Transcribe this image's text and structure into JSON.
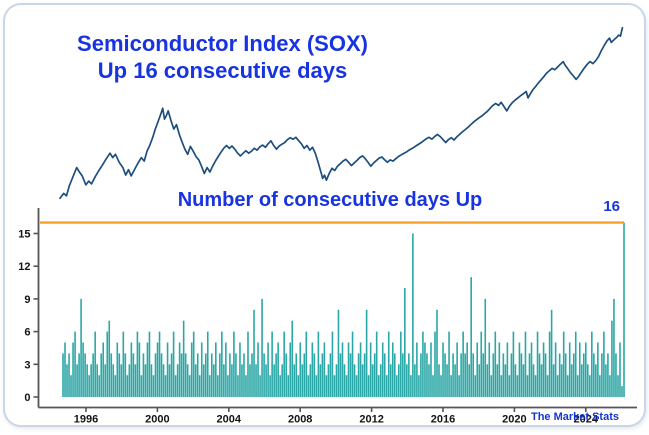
{
  "card": {
    "title_line1": "Semiconductor Index (SOX)",
    "title_line2": "Up 16 consecutive days",
    "watermark": "The Market Stats"
  },
  "colors": {
    "title_blue": "#1833E0",
    "line_navy": "#1E4E7E",
    "bar_teal": "#2AA7A6",
    "highlight_orange": "#F5A02B",
    "axis_gray": "#555555",
    "tick_text": "#141414"
  },
  "chart_data": [
    {
      "id": "sox-price",
      "type": "line",
      "title": "Semiconductor Index (SOX)",
      "subtitle": "Up 16 consecutive days",
      "x_unit": "year",
      "x_range": [
        1994.8,
        2025.2
      ],
      "yscale": "log",
      "grid": false,
      "legend": "none",
      "points": [
        [
          1994.8,
          195
        ],
        [
          1995.0,
          215
        ],
        [
          1995.15,
          205
        ],
        [
          1995.3,
          250
        ],
        [
          1995.5,
          300
        ],
        [
          1995.7,
          360
        ],
        [
          1995.85,
          330
        ],
        [
          1996.0,
          305
        ],
        [
          1996.2,
          255
        ],
        [
          1996.35,
          275
        ],
        [
          1996.5,
          260
        ],
        [
          1996.7,
          300
        ],
        [
          1996.9,
          340
        ],
        [
          1997.1,
          380
        ],
        [
          1997.3,
          430
        ],
        [
          1997.5,
          480
        ],
        [
          1997.65,
          440
        ],
        [
          1997.8,
          470
        ],
        [
          1998.0,
          400
        ],
        [
          1998.2,
          360
        ],
        [
          1998.35,
          310
        ],
        [
          1998.5,
          345
        ],
        [
          1998.65,
          305
        ],
        [
          1998.8,
          340
        ],
        [
          1999.0,
          390
        ],
        [
          1999.2,
          440
        ],
        [
          1999.35,
          410
        ],
        [
          1999.5,
          500
        ],
        [
          1999.65,
          560
        ],
        [
          1999.8,
          650
        ],
        [
          1999.95,
          780
        ],
        [
          2000.1,
          900
        ],
        [
          2000.25,
          1050
        ],
        [
          2000.35,
          1180
        ],
        [
          2000.45,
          950
        ],
        [
          2000.55,
          1020
        ],
        [
          2000.65,
          1120
        ],
        [
          2000.8,
          920
        ],
        [
          2000.95,
          780
        ],
        [
          2001.1,
          850
        ],
        [
          2001.25,
          700
        ],
        [
          2001.4,
          600
        ],
        [
          2001.55,
          520
        ],
        [
          2001.7,
          470
        ],
        [
          2001.85,
          550
        ],
        [
          2002.0,
          500
        ],
        [
          2002.15,
          450
        ],
        [
          2002.3,
          420
        ],
        [
          2002.45,
          370
        ],
        [
          2002.6,
          320
        ],
        [
          2002.75,
          360
        ],
        [
          2002.9,
          330
        ],
        [
          2003.05,
          370
        ],
        [
          2003.2,
          410
        ],
        [
          2003.35,
          450
        ],
        [
          2003.5,
          490
        ],
        [
          2003.65,
          530
        ],
        [
          2003.8,
          560
        ],
        [
          2003.95,
          530
        ],
        [
          2004.1,
          555
        ],
        [
          2004.25,
          520
        ],
        [
          2004.4,
          480
        ],
        [
          2004.55,
          455
        ],
        [
          2004.7,
          480
        ],
        [
          2004.85,
          505
        ],
        [
          2005.0,
          480
        ],
        [
          2005.15,
          500
        ],
        [
          2005.3,
          530
        ],
        [
          2005.45,
          510
        ],
        [
          2005.6,
          545
        ],
        [
          2005.75,
          565
        ],
        [
          2005.9,
          540
        ],
        [
          2006.05,
          580
        ],
        [
          2006.2,
          615
        ],
        [
          2006.35,
          560
        ],
        [
          2006.5,
          520
        ],
        [
          2006.65,
          555
        ],
        [
          2006.8,
          575
        ],
        [
          2006.95,
          595
        ],
        [
          2007.1,
          630
        ],
        [
          2007.25,
          655
        ],
        [
          2007.4,
          635
        ],
        [
          2007.55,
          660
        ],
        [
          2007.7,
          615
        ],
        [
          2007.85,
          580
        ],
        [
          2008.0,
          530
        ],
        [
          2008.15,
          560
        ],
        [
          2008.3,
          510
        ],
        [
          2008.45,
          540
        ],
        [
          2008.6,
          480
        ],
        [
          2008.75,
          400
        ],
        [
          2008.9,
          330
        ],
        [
          2009.0,
          290
        ],
        [
          2009.1,
          310
        ],
        [
          2009.2,
          280
        ],
        [
          2009.35,
          320
        ],
        [
          2009.5,
          355
        ],
        [
          2009.65,
          340
        ],
        [
          2009.8,
          370
        ],
        [
          2009.95,
          390
        ],
        [
          2010.1,
          410
        ],
        [
          2010.25,
          425
        ],
        [
          2010.4,
          400
        ],
        [
          2010.55,
          375
        ],
        [
          2010.7,
          395
        ],
        [
          2010.85,
          415
        ],
        [
          2011.0,
          440
        ],
        [
          2011.15,
          455
        ],
        [
          2011.3,
          430
        ],
        [
          2011.45,
          400
        ],
        [
          2011.6,
          370
        ],
        [
          2011.75,
          395
        ],
        [
          2011.9,
          415
        ],
        [
          2012.05,
          435
        ],
        [
          2012.2,
          445
        ],
        [
          2012.35,
          420
        ],
        [
          2012.5,
          400
        ],
        [
          2012.65,
          420
        ],
        [
          2012.8,
          410
        ],
        [
          2012.95,
          430
        ],
        [
          2013.1,
          450
        ],
        [
          2013.25,
          465
        ],
        [
          2013.4,
          480
        ],
        [
          2013.55,
          495
        ],
        [
          2013.7,
          515
        ],
        [
          2013.85,
          530
        ],
        [
          2014.0,
          550
        ],
        [
          2014.15,
          570
        ],
        [
          2014.3,
          590
        ],
        [
          2014.45,
          615
        ],
        [
          2014.6,
          640
        ],
        [
          2014.75,
          660
        ],
        [
          2014.9,
          635
        ],
        [
          2015.05,
          670
        ],
        [
          2015.2,
          700
        ],
        [
          2015.35,
          670
        ],
        [
          2015.5,
          630
        ],
        [
          2015.65,
          595
        ],
        [
          2015.8,
          630
        ],
        [
          2015.95,
          655
        ],
        [
          2016.1,
          625
        ],
        [
          2016.25,
          665
        ],
        [
          2016.4,
          700
        ],
        [
          2016.55,
          735
        ],
        [
          2016.7,
          770
        ],
        [
          2016.85,
          805
        ],
        [
          2017.0,
          850
        ],
        [
          2017.15,
          895
        ],
        [
          2017.3,
          935
        ],
        [
          2017.45,
          975
        ],
        [
          2017.6,
          1010
        ],
        [
          2017.75,
          1060
        ],
        [
          2017.9,
          1110
        ],
        [
          2018.05,
          1180
        ],
        [
          2018.2,
          1250
        ],
        [
          2018.35,
          1300
        ],
        [
          2018.5,
          1250
        ],
        [
          2018.65,
          1330
        ],
        [
          2018.8,
          1220
        ],
        [
          2018.95,
          1120
        ],
        [
          2019.1,
          1230
        ],
        [
          2019.25,
          1320
        ],
        [
          2019.4,
          1390
        ],
        [
          2019.55,
          1450
        ],
        [
          2019.7,
          1520
        ],
        [
          2019.85,
          1580
        ],
        [
          2020.0,
          1650
        ],
        [
          2020.1,
          1450
        ],
        [
          2020.2,
          1550
        ],
        [
          2020.35,
          1700
        ],
        [
          2020.5,
          1820
        ],
        [
          2020.65,
          1950
        ],
        [
          2020.8,
          2080
        ],
        [
          2020.95,
          2220
        ],
        [
          2021.1,
          2380
        ],
        [
          2021.25,
          2500
        ],
        [
          2021.4,
          2620
        ],
        [
          2021.55,
          2550
        ],
        [
          2021.7,
          2700
        ],
        [
          2021.85,
          2850
        ],
        [
          2022.0,
          3000
        ],
        [
          2022.1,
          2800
        ],
        [
          2022.25,
          2600
        ],
        [
          2022.4,
          2400
        ],
        [
          2022.55,
          2250
        ],
        [
          2022.7,
          2100
        ],
        [
          2022.85,
          2250
        ],
        [
          2023.0,
          2450
        ],
        [
          2023.15,
          2650
        ],
        [
          2023.3,
          2850
        ],
        [
          2023.45,
          3000
        ],
        [
          2023.6,
          2880
        ],
        [
          2023.75,
          3050
        ],
        [
          2023.9,
          3300
        ],
        [
          2024.05,
          3700
        ],
        [
          2024.2,
          4100
        ],
        [
          2024.35,
          4500
        ],
        [
          2024.5,
          4800
        ],
        [
          2024.6,
          4400
        ],
        [
          2024.75,
          4650
        ],
        [
          2024.9,
          4900
        ],
        [
          2025.0,
          5100
        ],
        [
          2025.1,
          5000
        ],
        [
          2025.2,
          5900
        ]
      ]
    },
    {
      "id": "consecutive-up-days",
      "type": "bar",
      "title": "Number of consecutive days Up",
      "ylim": [
        0,
        17
      ],
      "yticks": [
        0,
        3,
        6,
        9,
        12,
        15
      ],
      "xticks": [
        1996,
        2000,
        2004,
        2008,
        2012,
        2016,
        2020,
        2024
      ],
      "grid": false,
      "highlight_line": {
        "value": 16,
        "label": "16",
        "color": "#F5A02B"
      },
      "max_streak": 16,
      "values": [
        4,
        5,
        3,
        4,
        2,
        5,
        6,
        3,
        4,
        9,
        5,
        4,
        3,
        2,
        3,
        4,
        6,
        3,
        2,
        4,
        5,
        3,
        6,
        7,
        4,
        3,
        2,
        5,
        4,
        3,
        6,
        4,
        2,
        3,
        5,
        4,
        3,
        6,
        5,
        2,
        4,
        3,
        5,
        6,
        3,
        2,
        4,
        5,
        6,
        4,
        3,
        2,
        5,
        3,
        4,
        6,
        2,
        3,
        5,
        4,
        7,
        4,
        3,
        2,
        5,
        6,
        3,
        4,
        2,
        5,
        3,
        4,
        6,
        2,
        4,
        3,
        5,
        2,
        4,
        6,
        3,
        5,
        2,
        4,
        3,
        6,
        4,
        2,
        5,
        3,
        4,
        2,
        6,
        3,
        4,
        8,
        3,
        5,
        2,
        9,
        4,
        3,
        5,
        2,
        6,
        3,
        4,
        5,
        2,
        3,
        6,
        4,
        2,
        5,
        7,
        3,
        4,
        2,
        5,
        3,
        4,
        6,
        2,
        3,
        5,
        4,
        2,
        6,
        3,
        4,
        5,
        2,
        3,
        4,
        6,
        2,
        3,
        8,
        4,
        5,
        3,
        2,
        5,
        4,
        6,
        3,
        2,
        4,
        5,
        3,
        4,
        8,
        2,
        5,
        3,
        4,
        6,
        2,
        3,
        5,
        4,
        2,
        6,
        3,
        5,
        4,
        2,
        3,
        6,
        4,
        10,
        3,
        4,
        2,
        15,
        3,
        5,
        2,
        4,
        6,
        5,
        4,
        3,
        5,
        2,
        6,
        8,
        3,
        2,
        5,
        4,
        3,
        6,
        2,
        4,
        3,
        5,
        2,
        4,
        6,
        4,
        5,
        3,
        11,
        4,
        2,
        5,
        3,
        6,
        4,
        9,
        3,
        5,
        2,
        4,
        6,
        3,
        5,
        2,
        4,
        3,
        5,
        2,
        4,
        6,
        3,
        2,
        5,
        4,
        3,
        6,
        2,
        4,
        5,
        3,
        2,
        6,
        4,
        3,
        5,
        4,
        2,
        6,
        8,
        3,
        5,
        2,
        4,
        3,
        6,
        4,
        2,
        5,
        3,
        4,
        6,
        2,
        5,
        3,
        4,
        5,
        3,
        2,
        6,
        4,
        3,
        5,
        2,
        4,
        6,
        3,
        4,
        2,
        7,
        9,
        4,
        2,
        5,
        1,
        16
      ]
    }
  ]
}
